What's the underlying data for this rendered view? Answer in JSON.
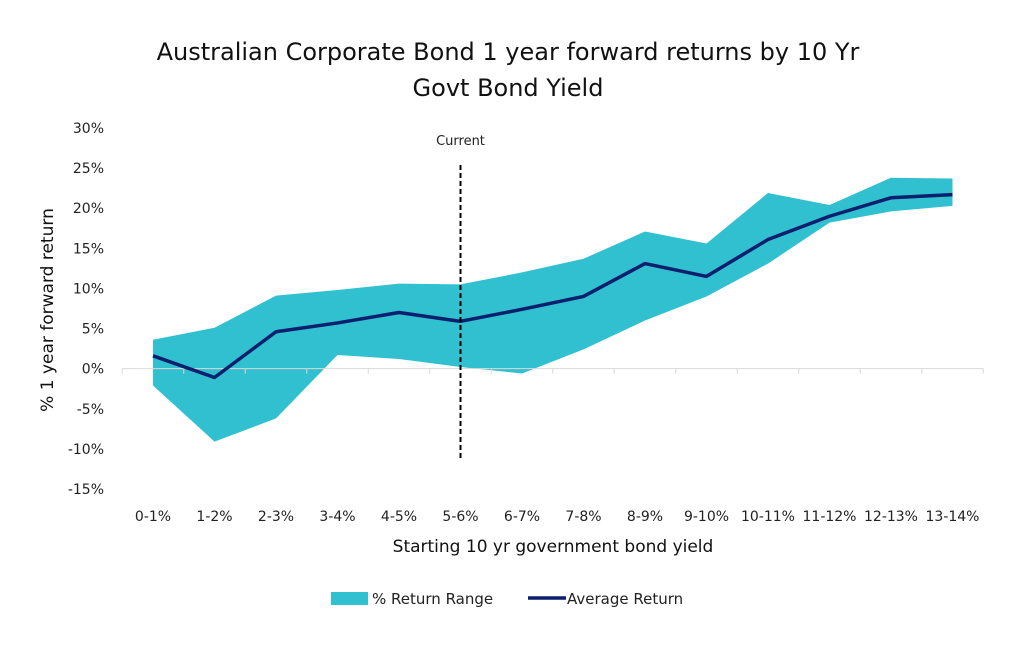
{
  "chart_data": {
    "type": "area",
    "title_lines": [
      "Australian Corporate Bond 1 year forward returns by 10 Yr",
      "Govt Bond Yield"
    ],
    "xlabel": "Starting 10 yr government bond yield",
    "ylabel": "% 1 year forward return",
    "categories": [
      "0-1%",
      "1-2%",
      "2-3%",
      "3-4%",
      "4-5%",
      "5-6%",
      "6-7%",
      "7-8%",
      "8-9%",
      "9-10%",
      "10-11%",
      "11-12%",
      "12-13%",
      "13-14%"
    ],
    "ylim": [
      -15,
      30
    ],
    "yticks": [
      -15,
      -10,
      -5,
      0,
      5,
      10,
      15,
      20,
      25,
      30
    ],
    "ytick_labels": [
      "-15%",
      "-10%",
      "-5%",
      "0%",
      "5%",
      "10%",
      "15%",
      "20%",
      "25%",
      "30%"
    ],
    "grid": false,
    "legend_position": "bottom",
    "series": [
      {
        "name": "% Return Range",
        "kind": "range",
        "color": "#31C0CF",
        "upper": [
          3.6,
          5.1,
          9.1,
          9.8,
          10.6,
          10.5,
          12.0,
          13.7,
          17.1,
          15.6,
          21.9,
          20.4,
          23.8,
          23.7
        ],
        "lower": [
          -2.1,
          -9.1,
          -6.2,
          1.7,
          1.2,
          0.2,
          -0.6,
          2.4,
          6.0,
          9.0,
          13.1,
          18.2,
          19.6,
          20.3
        ]
      },
      {
        "name": "Average Return",
        "kind": "line",
        "color": "#0A1F6E",
        "values": [
          1.6,
          -1.1,
          4.6,
          5.7,
          7.0,
          5.9,
          7.4,
          9.0,
          13.1,
          11.5,
          16.1,
          19.0,
          21.3,
          21.7
        ]
      }
    ],
    "annotations": [
      {
        "text": "Current",
        "category": "5-6%",
        "style": "dashed vertical line"
      }
    ]
  }
}
